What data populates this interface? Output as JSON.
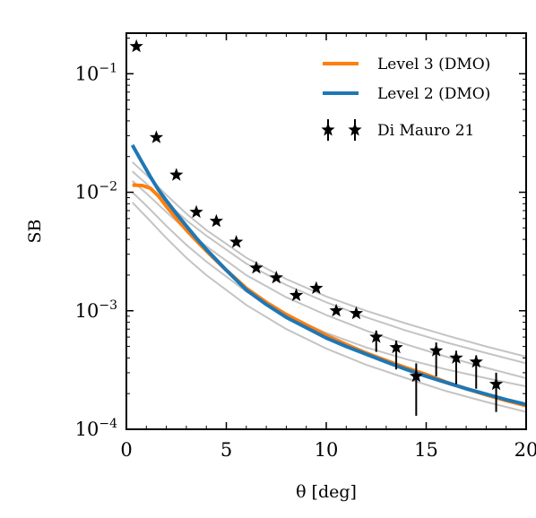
{
  "chart_data": {
    "type": "line",
    "xlabel": "θ [deg]",
    "ylabel": "SB",
    "xlim": [
      0,
      20
    ],
    "ylim": [
      0.0001,
      0.22
    ],
    "yscale": "log",
    "x_ticks": [
      0,
      5,
      10,
      15,
      20
    ],
    "y_ticks": [
      {
        "value": 0.0001,
        "base": "10",
        "exp": "−4"
      },
      {
        "value": 0.001,
        "base": "10",
        "exp": "−3"
      },
      {
        "value": 0.01,
        "base": "10",
        "exp": "−2"
      },
      {
        "value": 0.1,
        "base": "10",
        "exp": "−1"
      }
    ],
    "grid": false,
    "legend_position": "top-right",
    "series": [
      {
        "name": "Level 3 (DMO)",
        "color": "#ff7f0e",
        "x": [
          0.3,
          0.8,
          1.2,
          1.6,
          2.0,
          2.5,
          3.0,
          3.5,
          4.0,
          5.0,
          6.0,
          7.0,
          8.0,
          9.0,
          10.0,
          11.0,
          12.0,
          13.0,
          14.0,
          15.0,
          16.0,
          17.0,
          18.0,
          19.0,
          20.0
        ],
        "y": [
          0.0115,
          0.0114,
          0.0108,
          0.0093,
          0.0076,
          0.006,
          0.0048,
          0.0039,
          0.0032,
          0.0022,
          0.00155,
          0.00118,
          0.00093,
          0.00076,
          0.00062,
          0.00052,
          0.00044,
          0.00038,
          0.00033,
          0.00029,
          0.00025,
          0.00022,
          0.000195,
          0.000175,
          0.000158
        ]
      },
      {
        "name": "Level 2 (DMO)",
        "color": "#1f77b4",
        "x": [
          0.3,
          0.7,
          1.2,
          1.6,
          2.0,
          2.5,
          3.0,
          3.5,
          4.0,
          5.0,
          6.0,
          7.0,
          8.0,
          9.0,
          10.0,
          11.0,
          12.0,
          13.0,
          14.0,
          15.0,
          16.0,
          17.0,
          18.0,
          19.0,
          20.0
        ],
        "y": [
          0.025,
          0.019,
          0.0135,
          0.0105,
          0.0085,
          0.0066,
          0.0052,
          0.0041,
          0.0033,
          0.0022,
          0.0015,
          0.00113,
          0.00088,
          0.00072,
          0.00059,
          0.0005,
          0.00043,
          0.00037,
          0.00032,
          0.00028,
          0.000248,
          0.00022,
          0.000198,
          0.000178,
          0.000162
        ]
      }
    ],
    "background_series": {
      "color": "#c4c4c4",
      "lines": [
        {
          "x": [
            0.3,
            1,
            2,
            3,
            4,
            6,
            8,
            10,
            12,
            14,
            16,
            18,
            20
          ],
          "y": [
            0.018,
            0.014,
            0.0095,
            0.0066,
            0.0048,
            0.0028,
            0.00185,
            0.00132,
            0.001,
            0.00078,
            0.00062,
            0.0005,
            0.00041
          ]
        },
        {
          "x": [
            0.3,
            1,
            2,
            3,
            4,
            6,
            8,
            10,
            12,
            14,
            16,
            18,
            20
          ],
          "y": [
            0.015,
            0.0118,
            0.0082,
            0.0058,
            0.0043,
            0.0025,
            0.00165,
            0.00118,
            0.00088,
            0.00068,
            0.00054,
            0.00044,
            0.00036
          ]
        },
        {
          "x": [
            0.3,
            1,
            2,
            3,
            4,
            6,
            8,
            10,
            12,
            14,
            16,
            18,
            20
          ],
          "y": [
            0.0125,
            0.0098,
            0.0068,
            0.0048,
            0.0035,
            0.002,
            0.0013,
            0.00092,
            0.00068,
            0.00052,
            0.00041,
            0.00033,
            0.00027
          ]
        },
        {
          "x": [
            0.3,
            1,
            2,
            3,
            4,
            6,
            8,
            10,
            12,
            14,
            16,
            18,
            20
          ],
          "y": [
            0.01,
            0.0077,
            0.0052,
            0.0036,
            0.0026,
            0.00145,
            0.00092,
            0.00065,
            0.00049,
            0.00039,
            0.00032,
            0.00027,
            0.00023
          ]
        },
        {
          "x": [
            0.3,
            1,
            2,
            3,
            4,
            6,
            8,
            10,
            12,
            14,
            16,
            18,
            20
          ],
          "y": [
            0.0082,
            0.0062,
            0.0041,
            0.0028,
            0.002,
            0.00112,
            0.0007,
            0.00048,
            0.00035,
            0.00027,
            0.00021,
            0.00017,
            0.00014
          ]
        }
      ]
    },
    "data_points": {
      "name": "Di Mauro 21",
      "x": [
        0.5,
        1.5,
        2.5,
        3.5,
        4.5,
        5.5,
        6.5,
        7.5,
        8.5,
        9.5,
        10.5,
        11.5,
        12.5,
        13.5,
        14.5,
        15.5,
        16.5,
        17.5,
        18.5
      ],
      "y": [
        0.17,
        0.029,
        0.014,
        0.0068,
        0.0057,
        0.0038,
        0.0023,
        0.0019,
        0.00135,
        0.00155,
        0.001,
        0.00095,
        0.0006,
        0.00049,
        0.00028,
        0.00046,
        0.0004,
        0.00037,
        0.00024
      ],
      "err_low": [
        0,
        0,
        0,
        0,
        0,
        0,
        0,
        0,
        0,
        0,
        0,
        0,
        0.00045,
        0.00032,
        0.00013,
        0.00028,
        0.00024,
        0.00022,
        0.00014
      ],
      "err_high": [
        0,
        0,
        0,
        0,
        0,
        0,
        0,
        0,
        0,
        0,
        0,
        0,
        0.00068,
        0.00056,
        0.00036,
        0.00054,
        0.00046,
        0.00042,
        0.0003
      ]
    },
    "legend": [
      {
        "label": "Level 3 (DMO)",
        "kind": "line",
        "color": "#ff7f0e"
      },
      {
        "label": "Level 2 (DMO)",
        "kind": "line",
        "color": "#1f77b4"
      },
      {
        "label": "Di Mauro 21",
        "kind": "marker",
        "color": "#000000"
      }
    ]
  }
}
